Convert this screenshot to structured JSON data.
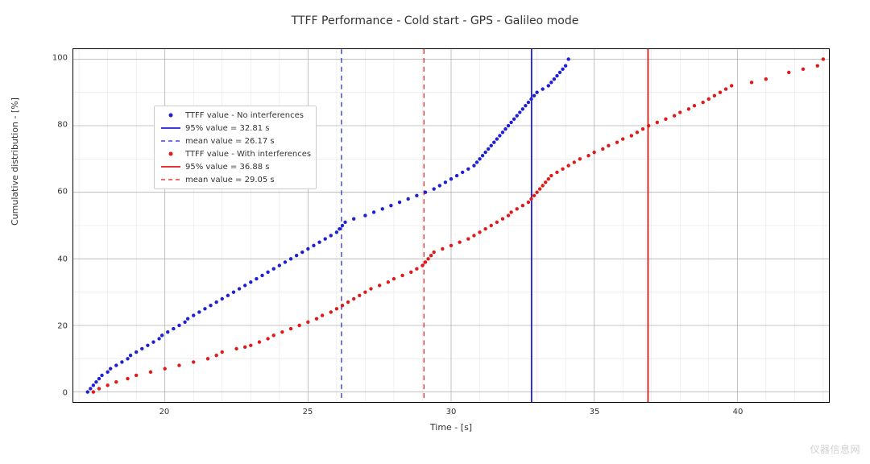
{
  "title": "TTFF Performance - Cold start - GPS - Galileo mode",
  "title_fontsize": 14,
  "xlabel": "Time - [s]",
  "ylabel": "Cumulative distribution - [%]",
  "label_fontsize": 11,
  "tick_fontsize": 10,
  "background_color": "#ffffff",
  "grid": {
    "major_color": "#b0b0b0",
    "minor_color": "#e0e0e0",
    "major_width": 0.8,
    "minor_width": 0.5
  },
  "xaxis": {
    "min": 16.8,
    "max": 43.2,
    "major_ticks": [
      20,
      25,
      30,
      35,
      40
    ],
    "minor_step": 1
  },
  "yaxis": {
    "min": -3,
    "max": 103,
    "major_ticks": [
      0,
      20,
      40,
      60,
      80,
      100
    ],
    "minor_step": 10
  },
  "watermark": "仪器信息网",
  "legend": {
    "items": [
      {
        "type": "marker",
        "color": "#1f1fd6",
        "label": "TTFF value - No interferences"
      },
      {
        "type": "solid",
        "color": "#1f1fd6",
        "label": "95% value = 32.81 s"
      },
      {
        "type": "dashed",
        "color": "#1f1fd6",
        "label": "mean value = 26.17 s"
      },
      {
        "type": "marker",
        "color": "#e01919",
        "label": "TTFF value - With interferences"
      },
      {
        "type": "solid",
        "color": "#e01919",
        "label": "95% value = 36.88 s"
      },
      {
        "type": "dashed",
        "color": "#e01919",
        "label": "mean value = 29.05 s"
      }
    ]
  },
  "vlines": [
    {
      "x": 32.81,
      "color": "#1f1fd6",
      "style": "solid",
      "width": 1.8
    },
    {
      "x": 26.17,
      "color": "#1f1fd6",
      "style": "dashed",
      "width": 1.2
    },
    {
      "x": 36.88,
      "color": "#e01919",
      "style": "solid",
      "width": 1.8
    },
    {
      "x": 29.05,
      "color": "#e01919",
      "style": "dashed",
      "width": 1.2
    }
  ],
  "series": [
    {
      "name": "no_interference",
      "color": "#1f1fd6",
      "marker_size": 2.2,
      "x": [
        17.3,
        17.4,
        17.5,
        17.6,
        17.7,
        17.8,
        18.0,
        18.1,
        18.3,
        18.5,
        18.7,
        18.8,
        19.0,
        19.2,
        19.4,
        19.6,
        19.8,
        19.9,
        20.1,
        20.3,
        20.5,
        20.7,
        20.8,
        21.0,
        21.2,
        21.4,
        21.6,
        21.8,
        22.0,
        22.2,
        22.4,
        22.6,
        22.8,
        23.0,
        23.2,
        23.4,
        23.6,
        23.8,
        24.0,
        24.2,
        24.4,
        24.6,
        24.8,
        25.0,
        25.2,
        25.4,
        25.6,
        25.8,
        26.0,
        26.1,
        26.2,
        26.3,
        26.6,
        27.0,
        27.3,
        27.6,
        27.9,
        28.2,
        28.5,
        28.8,
        29.1,
        29.4,
        29.6,
        29.8,
        30.0,
        30.2,
        30.4,
        30.6,
        30.8,
        30.9,
        31.0,
        31.1,
        31.2,
        31.3,
        31.4,
        31.5,
        31.6,
        31.7,
        31.8,
        31.9,
        32.0,
        32.1,
        32.2,
        32.3,
        32.4,
        32.5,
        32.6,
        32.7,
        32.8,
        32.9,
        33.0,
        33.2,
        33.4,
        33.5,
        33.6,
        33.7,
        33.8,
        33.9,
        34.0,
        34.1
      ],
      "y": [
        0,
        1,
        2,
        3,
        4,
        5,
        6,
        7,
        8,
        9,
        10,
        11,
        12,
        13,
        14,
        15,
        16,
        17,
        18,
        19,
        20,
        21,
        22,
        23,
        24,
        25,
        26,
        27,
        28,
        29,
        30,
        31,
        32,
        33,
        34,
        35,
        36,
        37,
        38,
        39,
        40,
        41,
        42,
        43,
        44,
        45,
        46,
        47,
        48,
        49,
        50,
        51,
        52,
        53,
        54,
        55,
        56,
        57,
        58,
        59,
        60,
        61,
        62,
        63,
        64,
        65,
        66,
        67,
        68,
        69,
        70,
        71,
        72,
        73,
        74,
        75,
        76,
        77,
        78,
        79,
        80,
        81,
        82,
        83,
        84,
        85,
        86,
        87,
        88,
        89,
        90,
        91,
        92,
        93,
        94,
        95,
        96,
        97,
        98,
        100
      ]
    },
    {
      "name": "with_interference",
      "color": "#e01919",
      "marker_size": 2.2,
      "x": [
        17.5,
        17.7,
        18.0,
        18.3,
        18.7,
        19.0,
        19.5,
        20.0,
        20.5,
        21.0,
        21.5,
        21.8,
        22.0,
        22.5,
        22.8,
        23.0,
        23.3,
        23.6,
        23.8,
        24.1,
        24.4,
        24.7,
        25.0,
        25.3,
        25.5,
        25.8,
        26.0,
        26.2,
        26.4,
        26.6,
        26.8,
        27.0,
        27.2,
        27.5,
        27.8,
        28.0,
        28.3,
        28.6,
        28.8,
        29.0,
        29.1,
        29.2,
        29.3,
        29.4,
        29.7,
        30.0,
        30.3,
        30.6,
        30.8,
        31.0,
        31.2,
        31.4,
        31.6,
        31.8,
        32.0,
        32.1,
        32.3,
        32.5,
        32.7,
        32.8,
        32.9,
        33.0,
        33.1,
        33.2,
        33.3,
        33.4,
        33.5,
        33.7,
        33.9,
        34.1,
        34.3,
        34.5,
        34.8,
        35.0,
        35.3,
        35.5,
        35.8,
        36.0,
        36.3,
        36.5,
        36.7,
        36.9,
        37.2,
        37.5,
        37.8,
        38.0,
        38.3,
        38.5,
        38.8,
        39.0,
        39.2,
        39.4,
        39.6,
        39.8,
        40.5,
        41.0,
        41.8,
        42.3,
        42.8,
        43.0
      ],
      "y": [
        0,
        1,
        2,
        3,
        4,
        5,
        6,
        7,
        8,
        9,
        10,
        11,
        12,
        13,
        13.5,
        14,
        15,
        16,
        17,
        18,
        19,
        20,
        21,
        22,
        23,
        24,
        25,
        26,
        27,
        28,
        29,
        30,
        31,
        32,
        33,
        34,
        35,
        36,
        37,
        38,
        39,
        40,
        41,
        42,
        43,
        44,
        45,
        46,
        47,
        48,
        49,
        50,
        51,
        52,
        53,
        54,
        55,
        56,
        57,
        58,
        59,
        60,
        61,
        62,
        63,
        64,
        65,
        66,
        67,
        68,
        69,
        70,
        71,
        72,
        73,
        74,
        75,
        76,
        77,
        78,
        79,
        80,
        81,
        82,
        83,
        84,
        85,
        86,
        87,
        88,
        89,
        90,
        91,
        92,
        93,
        94,
        96,
        97,
        98,
        100
      ]
    }
  ]
}
